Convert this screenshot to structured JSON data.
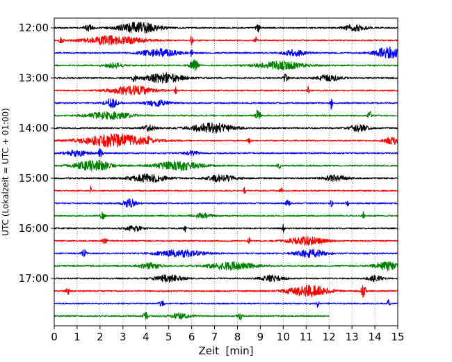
{
  "chart_data": {
    "type": "line",
    "xlabel": "Zeit  [min]",
    "ylabel": "UTC (Lokalzeit = UTC + 01:00)",
    "xlim": [
      0,
      15
    ],
    "x_ticks": [
      "0",
      "1",
      "2",
      "3",
      "4",
      "5",
      "6",
      "7",
      "8",
      "9",
      "10",
      "11",
      "12",
      "13",
      "14",
      "15"
    ],
    "y_tick_labels": [
      "12:00",
      "13:00",
      "14:00",
      "15:00",
      "16:00",
      "17:00"
    ],
    "y_tick_rows": [
      0,
      4,
      8,
      12,
      16,
      20
    ],
    "vertical_grid": "dotted",
    "colors": [
      "#000000",
      "#ff0000",
      "#0000ff",
      "#008000"
    ],
    "rows": [
      {
        "start": "12:00",
        "color": "#000000",
        "end_min": 15,
        "events": [
          {
            "t": 3.7,
            "a": 0.55,
            "w": 0.9
          },
          {
            "t": 1.5,
            "a": 0.3,
            "w": 0.2
          },
          {
            "t": 8.9,
            "a": 0.4,
            "w": 0.1
          },
          {
            "t": 13.1,
            "a": 0.3,
            "w": 0.5
          }
        ]
      },
      {
        "start": "12:15",
        "color": "#ff0000",
        "end_min": 15,
        "events": [
          {
            "t": 2.6,
            "a": 0.45,
            "w": 1.2
          },
          {
            "t": 6.0,
            "a": 0.6,
            "w": 0.05
          },
          {
            "t": 8.8,
            "a": 0.6,
            "w": 0.05
          },
          {
            "t": 0.3,
            "a": 0.3,
            "w": 0.1
          }
        ]
      },
      {
        "start": "12:30",
        "color": "#0000ff",
        "end_min": 15,
        "events": [
          {
            "t": 4.6,
            "a": 0.4,
            "w": 0.8
          },
          {
            "t": 6.0,
            "a": 0.45,
            "w": 0.05
          },
          {
            "t": 14.6,
            "a": 0.55,
            "w": 0.6
          },
          {
            "t": 10.5,
            "a": 0.3,
            "w": 0.5
          }
        ]
      },
      {
        "start": "12:45",
        "color": "#008000",
        "end_min": 15,
        "events": [
          {
            "t": 6.1,
            "a": 0.55,
            "w": 0.2
          },
          {
            "t": 9.9,
            "a": 0.4,
            "w": 1.0
          },
          {
            "t": 2.6,
            "a": 0.25,
            "w": 0.4
          }
        ]
      },
      {
        "start": "13:00",
        "color": "#000000",
        "end_min": 15,
        "events": [
          {
            "t": 4.8,
            "a": 0.5,
            "w": 0.8
          },
          {
            "t": 3.5,
            "a": 0.35,
            "w": 0.1
          },
          {
            "t": 10.1,
            "a": 0.45,
            "w": 0.1
          },
          {
            "t": 12.0,
            "a": 0.3,
            "w": 0.5
          }
        ]
      },
      {
        "start": "13:15",
        "color": "#ff0000",
        "end_min": 15,
        "events": [
          {
            "t": 3.4,
            "a": 0.45,
            "w": 0.9
          },
          {
            "t": 5.3,
            "a": 0.4,
            "w": 0.05
          },
          {
            "t": 11.1,
            "a": 0.45,
            "w": 0.05
          }
        ]
      },
      {
        "start": "13:30",
        "color": "#0000ff",
        "end_min": 15,
        "events": [
          {
            "t": 2.5,
            "a": 0.45,
            "w": 0.3
          },
          {
            "t": 12.1,
            "a": 0.6,
            "w": 0.05
          },
          {
            "t": 4.5,
            "a": 0.3,
            "w": 0.5
          }
        ]
      },
      {
        "start": "13:45",
        "color": "#008000",
        "end_min": 15,
        "events": [
          {
            "t": 2.4,
            "a": 0.35,
            "w": 1.0
          },
          {
            "t": 8.9,
            "a": 0.6,
            "w": 0.1
          },
          {
            "t": 13.8,
            "a": 0.4,
            "w": 0.1
          }
        ]
      },
      {
        "start": "14:00",
        "color": "#000000",
        "end_min": 15,
        "events": [
          {
            "t": 6.9,
            "a": 0.5,
            "w": 0.9
          },
          {
            "t": 13.3,
            "a": 0.35,
            "w": 0.4
          },
          {
            "t": 4.1,
            "a": 0.3,
            "w": 0.3
          }
        ]
      },
      {
        "start": "14:15",
        "color": "#ff0000",
        "end_min": 15,
        "events": [
          {
            "t": 2.7,
            "a": 0.65,
            "w": 1.4
          },
          {
            "t": 4.1,
            "a": 0.5,
            "w": 0.05
          },
          {
            "t": 8.5,
            "a": 0.35,
            "w": 0.05
          },
          {
            "t": 14.8,
            "a": 0.35,
            "w": 0.4
          }
        ]
      },
      {
        "start": "14:30",
        "color": "#0000ff",
        "end_min": 15,
        "events": [
          {
            "t": 2.0,
            "a": 0.45,
            "w": 0.1
          },
          {
            "t": 1.0,
            "a": 0.3,
            "w": 0.5
          },
          {
            "t": 6.0,
            "a": 0.25,
            "w": 0.3
          }
        ]
      },
      {
        "start": "14:45",
        "color": "#008000",
        "end_min": 15,
        "events": [
          {
            "t": 1.7,
            "a": 0.55,
            "w": 0.8
          },
          {
            "t": 5.4,
            "a": 0.45,
            "w": 1.0
          },
          {
            "t": 9.8,
            "a": 0.3,
            "w": 0.1
          }
        ]
      },
      {
        "start": "15:00",
        "color": "#000000",
        "end_min": 15,
        "events": [
          {
            "t": 4.1,
            "a": 0.4,
            "w": 0.8
          },
          {
            "t": 7.3,
            "a": 0.35,
            "w": 0.6
          },
          {
            "t": 12.3,
            "a": 0.3,
            "w": 0.5
          }
        ]
      },
      {
        "start": "15:15",
        "color": "#ff0000",
        "end_min": 15,
        "events": [
          {
            "t": 1.6,
            "a": 0.5,
            "w": 0.05
          },
          {
            "t": 8.3,
            "a": 0.45,
            "w": 0.05
          },
          {
            "t": 9.9,
            "a": 0.45,
            "w": 0.05
          }
        ]
      },
      {
        "start": "15:30",
        "color": "#0000ff",
        "end_min": 15,
        "events": [
          {
            "t": 3.3,
            "a": 0.4,
            "w": 0.3
          },
          {
            "t": 12.1,
            "a": 0.45,
            "w": 0.05
          },
          {
            "t": 12.8,
            "a": 0.45,
            "w": 0.05
          },
          {
            "t": 10.2,
            "a": 0.3,
            "w": 0.1
          }
        ]
      },
      {
        "start": "15:45",
        "color": "#008000",
        "end_min": 15,
        "events": [
          {
            "t": 2.1,
            "a": 0.35,
            "w": 0.1
          },
          {
            "t": 13.5,
            "a": 0.4,
            "w": 0.05
          },
          {
            "t": 6.5,
            "a": 0.25,
            "w": 0.4
          }
        ]
      },
      {
        "start": "16:00",
        "color": "#000000",
        "end_min": 15,
        "events": [
          {
            "t": 5.7,
            "a": 0.4,
            "w": 0.05
          },
          {
            "t": 10.0,
            "a": 0.4,
            "w": 0.05
          },
          {
            "t": 3.5,
            "a": 0.25,
            "w": 0.4
          }
        ]
      },
      {
        "start": "16:15",
        "color": "#ff0000",
        "end_min": 15,
        "events": [
          {
            "t": 11.0,
            "a": 0.4,
            "w": 0.8
          },
          {
            "t": 8.5,
            "a": 0.35,
            "w": 0.05
          },
          {
            "t": 2.2,
            "a": 0.3,
            "w": 0.1
          }
        ]
      },
      {
        "start": "16:30",
        "color": "#0000ff",
        "end_min": 15,
        "events": [
          {
            "t": 1.3,
            "a": 0.4,
            "w": 0.1
          },
          {
            "t": 5.5,
            "a": 0.35,
            "w": 1.0
          },
          {
            "t": 11.2,
            "a": 0.4,
            "w": 0.6
          }
        ]
      },
      {
        "start": "16:45",
        "color": "#008000",
        "end_min": 15,
        "events": [
          {
            "t": 7.8,
            "a": 0.4,
            "w": 1.0
          },
          {
            "t": 14.5,
            "a": 0.45,
            "w": 0.5
          },
          {
            "t": 4.2,
            "a": 0.3,
            "w": 0.5
          }
        ]
      },
      {
        "start": "17:00",
        "color": "#000000",
        "end_min": 15,
        "events": [
          {
            "t": 5.0,
            "a": 0.35,
            "w": 0.6
          },
          {
            "t": 9.5,
            "a": 0.3,
            "w": 0.5
          },
          {
            "t": 14.0,
            "a": 0.3,
            "w": 0.3
          }
        ]
      },
      {
        "start": "17:15",
        "color": "#ff0000",
        "end_min": 15,
        "events": [
          {
            "t": 11.1,
            "a": 0.55,
            "w": 0.9
          },
          {
            "t": 13.5,
            "a": 0.6,
            "w": 0.1
          },
          {
            "t": 0.6,
            "a": 0.3,
            "w": 0.1
          }
        ]
      },
      {
        "start": "17:30",
        "color": "#0000ff",
        "end_min": 15,
        "events": [
          {
            "t": 11.5,
            "a": 0.5,
            "w": 0.05
          },
          {
            "t": 14.6,
            "a": 0.4,
            "w": 0.05
          },
          {
            "t": 4.7,
            "a": 0.3,
            "w": 0.1
          }
        ]
      },
      {
        "start": "17:45",
        "color": "#008000",
        "end_min": 12,
        "events": [
          {
            "t": 4.0,
            "a": 0.45,
            "w": 0.1
          },
          {
            "t": 8.1,
            "a": 0.45,
            "w": 0.1
          },
          {
            "t": 5.5,
            "a": 0.25,
            "w": 0.5
          }
        ]
      }
    ]
  }
}
